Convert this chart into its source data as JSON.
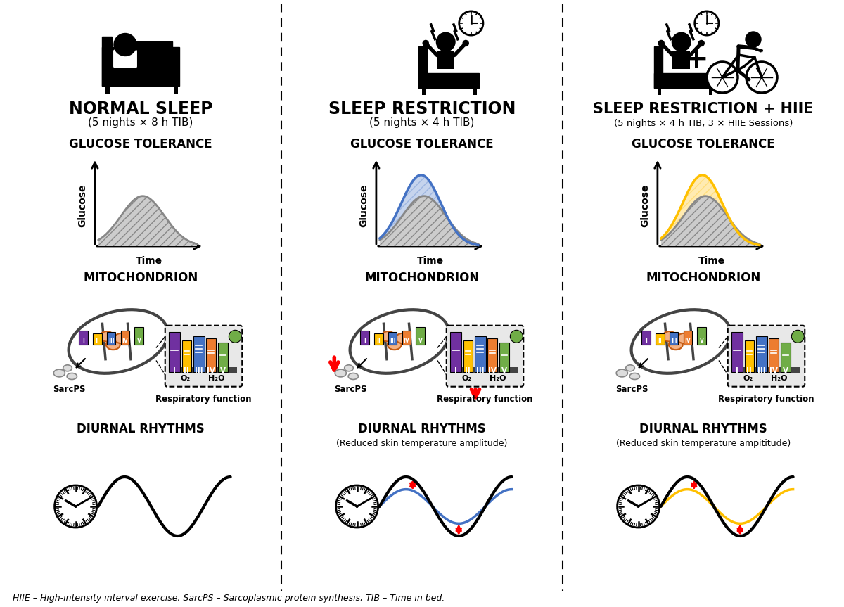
{
  "title_col1": "NORMAL SLEEP",
  "subtitle_col1": "(5 nights × 8 h TIB)",
  "title_col2": "SLEEP RESTRICTION",
  "subtitle_col2": "(5 nights × 4 h TIB)",
  "title_col3": "SLEEP RESTRICTION + HIIE",
  "subtitle_col3": "(5 nights × 4 h TIB, 3 × HIIE Sessions)",
  "section_glucose": "GLUCOSE TOLERANCE",
  "section_mito": "MITOCHONDRION",
  "section_diurnal": "DIURNAL RHYTHMS",
  "diurnal2_sub": "(Reduced skin temperature amplitude)",
  "diurnal3_sub": "(Reduced skin temperature ampititude)",
  "axis_xlabel": "Time",
  "axis_ylabel": "Glucose",
  "sarcp_label": "SarcPS",
  "resp_label": "Respiratory function",
  "o2_label": "O₂",
  "h2o_label": "H₂O",
  "footnote": "HIIE – High-intensity interval exercise, SarcPS – Sarcoplasmic protein synthesis, TIB – Time in bed.",
  "col2_curve_color": "#4472C4",
  "col3_curve_color": "#FFC000",
  "bg_color": "#ffffff",
  "red_color": "#FF0000",
  "complex_colors": [
    "#7030A0",
    "#FFC000",
    "#4472C4",
    "#ED7D31",
    "#70AD47"
  ],
  "complex_labels": [
    "I",
    "II",
    "III",
    "IV",
    "V"
  ]
}
